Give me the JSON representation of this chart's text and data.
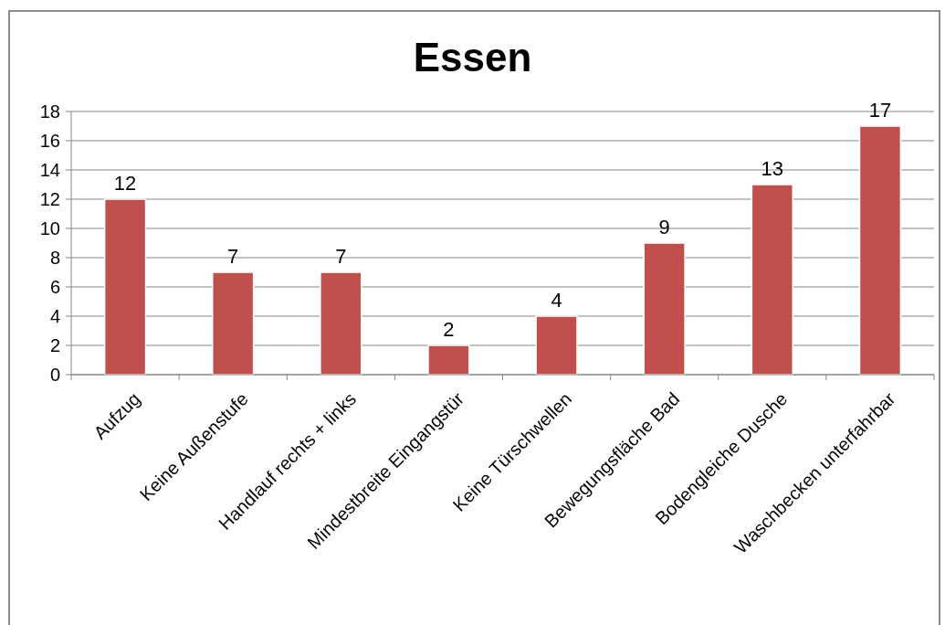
{
  "chart_data": {
    "type": "bar",
    "title": "Essen",
    "categories": [
      "Aufzug",
      "Keine Außenstufe",
      "Handlauf rechts + links",
      "Mindestbreite Eingangstür",
      "Keine Türschwellen",
      "Bewegungsfläche Bad",
      "Bodengleiche Dusche",
      "Waschbecken unterfahrbar"
    ],
    "values": [
      12,
      7,
      7,
      2,
      4,
      9,
      13,
      17
    ],
    "color": "#c0504d",
    "ylim": [
      0,
      18
    ],
    "yticks": [
      0,
      2,
      4,
      6,
      8,
      10,
      12,
      14,
      16,
      18
    ],
    "grid": "y",
    "data_labels": true
  }
}
